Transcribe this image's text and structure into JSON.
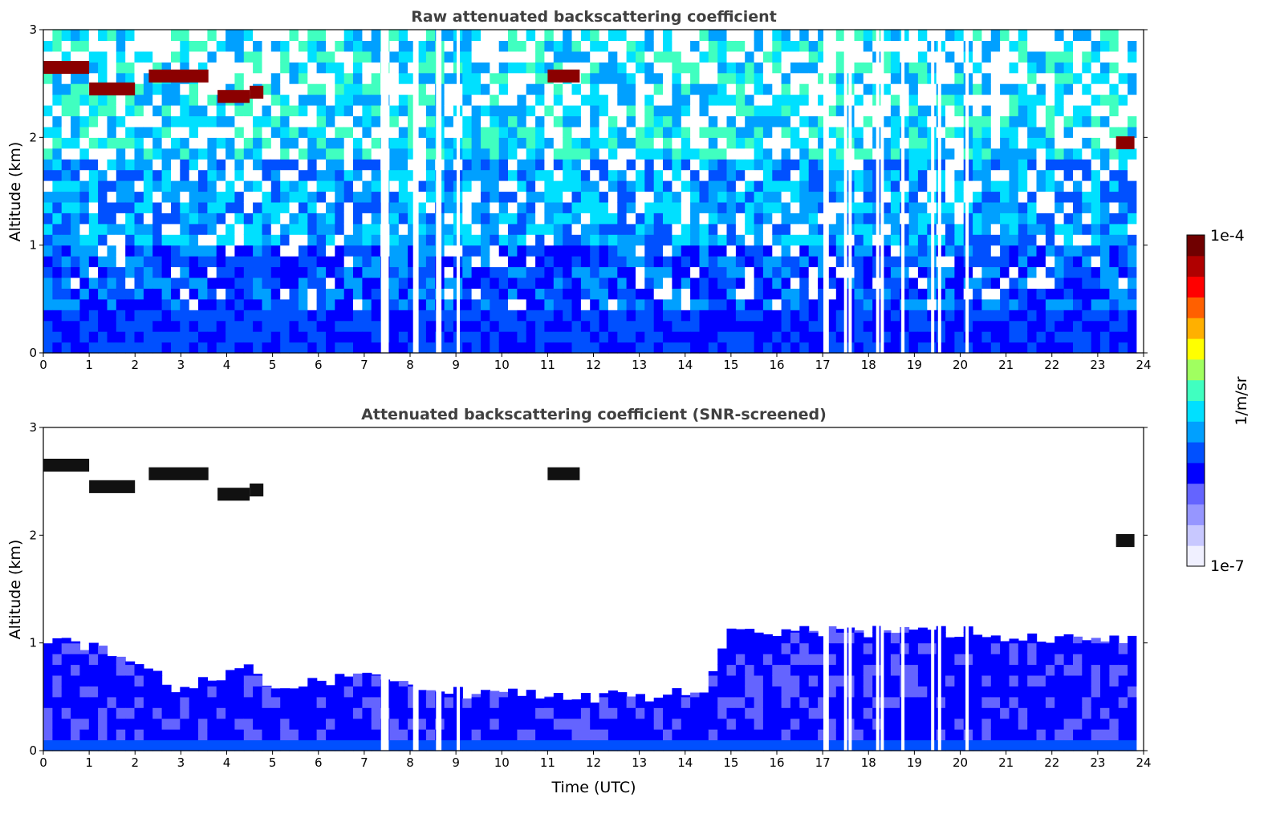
{
  "chart_data": [
    {
      "type": "heatmap",
      "title": "Raw attenuated backscattering coefficient",
      "xlabel": "",
      "ylabel": "Altitude (km)",
      "xlim": [
        0,
        24
      ],
      "ylim": [
        0,
        3
      ],
      "x_ticks": [
        "0",
        "1",
        "2",
        "3",
        "4",
        "5",
        "6",
        "7",
        "8",
        "9",
        "10",
        "11",
        "12",
        "13",
        "14",
        "15",
        "16",
        "17",
        "18",
        "19",
        "20",
        "21",
        "22",
        "23",
        "24"
      ],
      "y_ticks": [
        "0",
        "1",
        "2",
        "3"
      ],
      "cloud_layers_km": [
        {
          "t_start": 0,
          "t_end": 1.0,
          "altitude": 2.65
        },
        {
          "t_start": 1.0,
          "t_end": 2.0,
          "altitude": 2.45
        },
        {
          "t_start": 2.3,
          "t_end": 3.6,
          "altitude": 2.57
        },
        {
          "t_start": 3.8,
          "t_end": 4.5,
          "altitude": 2.38
        },
        {
          "t_start": 4.5,
          "t_end": 4.8,
          "altitude": 2.42
        },
        {
          "t_start": 11.0,
          "t_end": 11.7,
          "altitude": 2.57
        },
        {
          "t_start": 23.4,
          "t_end": 23.8,
          "altitude": 1.95
        }
      ],
      "missing_data_times_utc": [
        7.4,
        7.45,
        7.5,
        8.1,
        8.15,
        8.6,
        8.65,
        9.05,
        17.05,
        17.1,
        17.5,
        17.6,
        18.2,
        18.3,
        18.75,
        19.4,
        19.55,
        20.15
      ]
    },
    {
      "type": "heatmap",
      "title": "Attenuated backscattering coefficient (SNR-screened)",
      "xlabel": "Time (UTC)",
      "ylabel": "Altitude (km)",
      "xlim": [
        0,
        24
      ],
      "ylim": [
        0,
        3
      ],
      "x_ticks": [
        "0",
        "1",
        "2",
        "3",
        "4",
        "5",
        "6",
        "7",
        "8",
        "9",
        "10",
        "11",
        "12",
        "13",
        "14",
        "15",
        "16",
        "17",
        "18",
        "19",
        "20",
        "21",
        "22",
        "23",
        "24"
      ],
      "y_ticks": [
        "0",
        "1",
        "2",
        "3"
      ],
      "boundary_layer_top_km": [
        {
          "t": 0,
          "h": 1.05
        },
        {
          "t": 2,
          "h": 0.85
        },
        {
          "t": 3,
          "h": 0.55
        },
        {
          "t": 4.5,
          "h": 0.8
        },
        {
          "t": 5,
          "h": 0.55
        },
        {
          "t": 7,
          "h": 0.7
        },
        {
          "t": 9,
          "h": 0.55
        },
        {
          "t": 11,
          "h": 0.5
        },
        {
          "t": 13,
          "h": 0.5
        },
        {
          "t": 14.5,
          "h": 0.6
        },
        {
          "t": 15,
          "h": 1.1
        },
        {
          "t": 17,
          "h": 1.1
        },
        {
          "t": 20,
          "h": 1.1
        },
        {
          "t": 24,
          "h": 1.0
        }
      ]
    }
  ],
  "colorbar": {
    "max_label": "1e-4",
    "min_label": "1e-7",
    "unit_label": "1/m/sr",
    "colors": [
      "#f0f0ff",
      "#c8c8ff",
      "#9696ff",
      "#6464ff",
      "#0000ff",
      "#0050ff",
      "#00a0ff",
      "#00e0ff",
      "#40ffc0",
      "#a0ff60",
      "#ffff00",
      "#ffb000",
      "#ff6000",
      "#ff0000",
      "#b00000",
      "#700000"
    ]
  }
}
